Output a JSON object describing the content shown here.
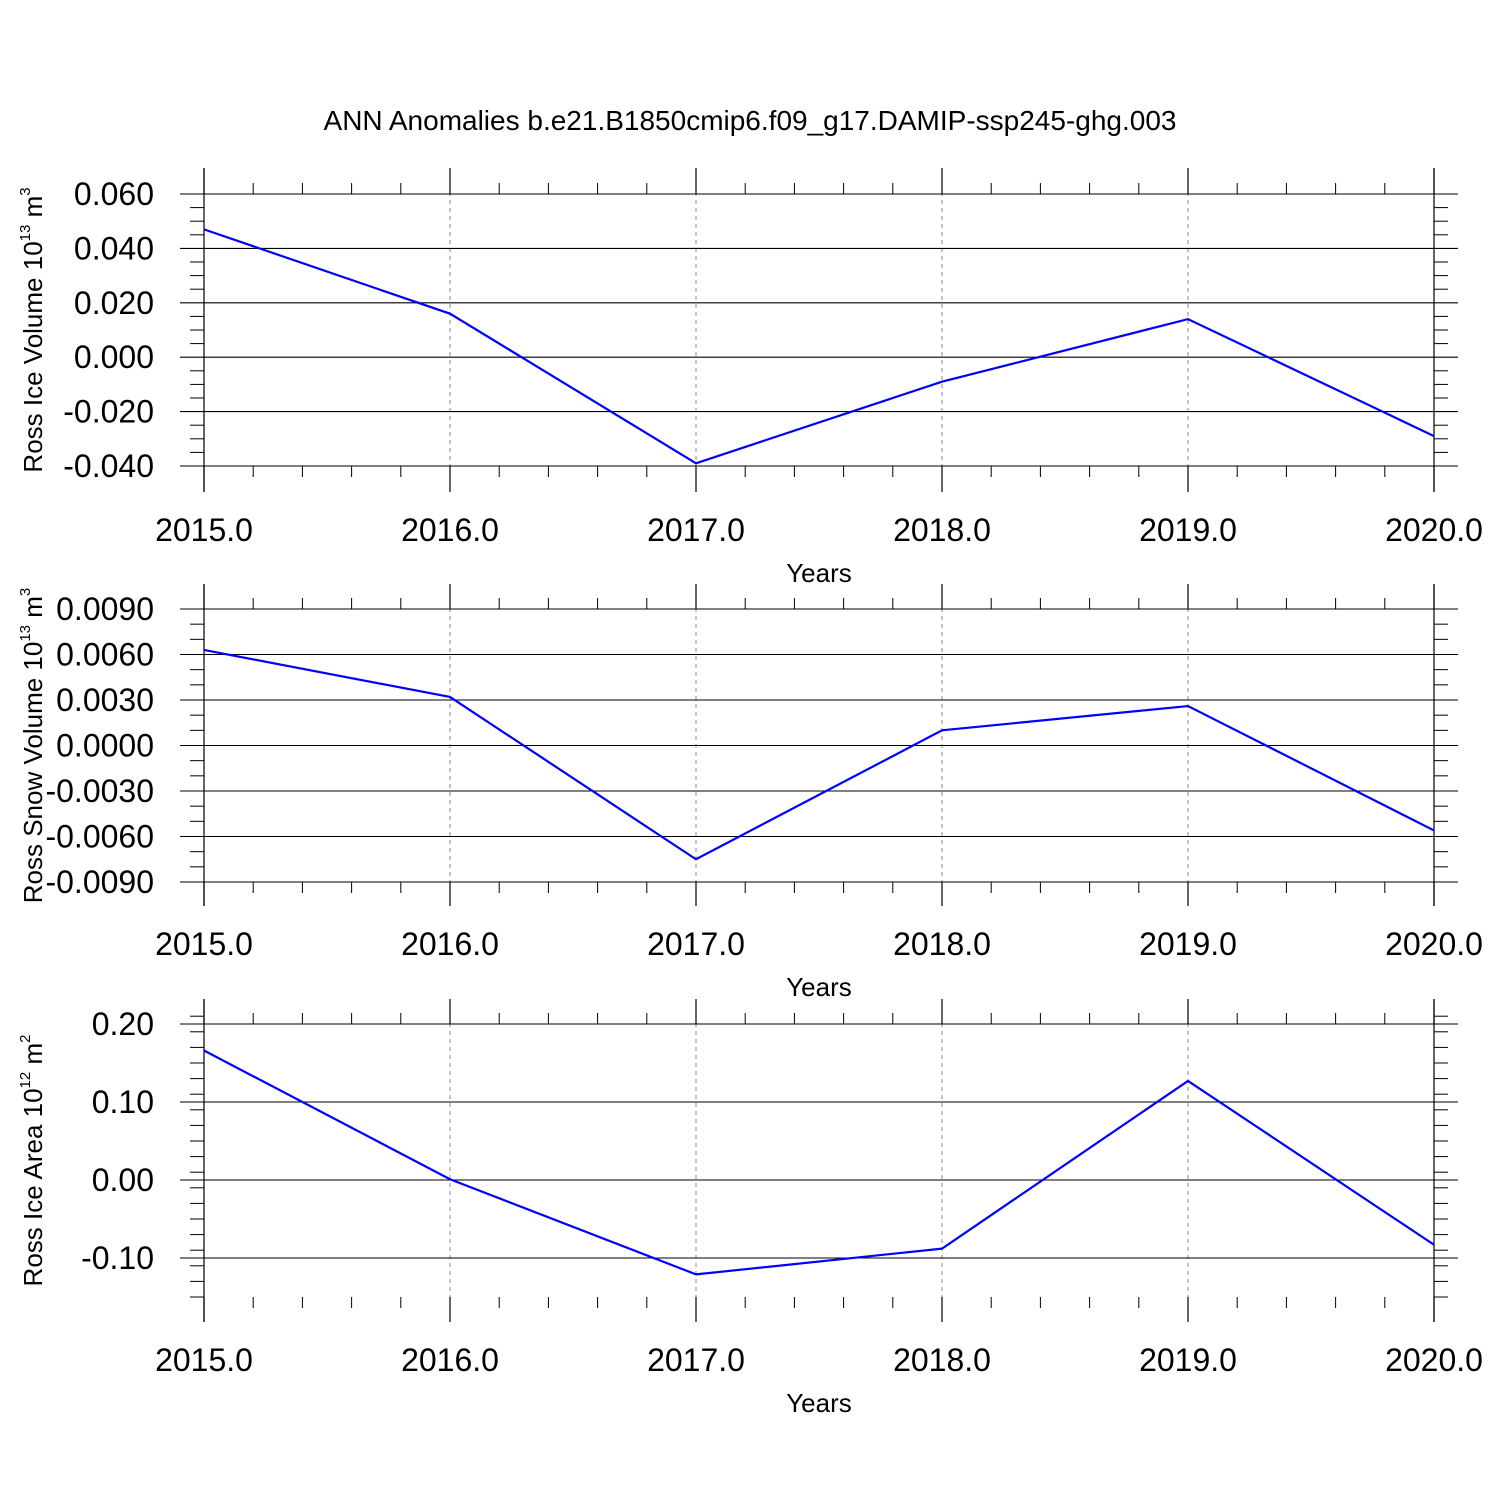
{
  "title": "ANN Anomalies b.e21.B1850cmip6.f09_g17.DAMIP-ssp245-ghg.003",
  "line_color": "#0000ff",
  "chart_data": [
    {
      "type": "line",
      "xlabel": "Years",
      "ylabel": {
        "text": "Ross Ice Volume 10",
        "sup": "13",
        "unit": " m",
        "unit_sup": "3"
      },
      "x": [
        2015.0,
        2016.0,
        2017.0,
        2018.0,
        2019.0,
        2020.0
      ],
      "xticks": [
        "2015.0",
        "2016.0",
        "2017.0",
        "2018.0",
        "2019.0",
        "2020.0"
      ],
      "xlim": [
        2015.0,
        2020.0
      ],
      "ylim": [
        -0.04,
        0.06
      ],
      "yticks": [
        0.06,
        0.04,
        0.02,
        0.0,
        -0.02,
        -0.04
      ],
      "ytick_labels": [
        "0.060",
        "0.040",
        "0.020",
        "0.000",
        "-0.020",
        "-0.040"
      ],
      "y_minor_step": 0.005,
      "series": [
        {
          "values": [
            0.047,
            0.016,
            -0.039,
            -0.009,
            0.014,
            -0.029
          ]
        }
      ]
    },
    {
      "type": "line",
      "xlabel": "Years",
      "ylabel": {
        "text": "Ross Snow Volume 10",
        "sup": "13",
        "unit": " m",
        "unit_sup": "3"
      },
      "x": [
        2015.0,
        2016.0,
        2017.0,
        2018.0,
        2019.0,
        2020.0
      ],
      "xticks": [
        "2015.0",
        "2016.0",
        "2017.0",
        "2018.0",
        "2019.0",
        "2020.0"
      ],
      "xlim": [
        2015.0,
        2020.0
      ],
      "ylim": [
        -0.009,
        0.009
      ],
      "yticks": [
        0.009,
        0.006,
        0.003,
        0.0,
        -0.003,
        -0.006,
        -0.009
      ],
      "ytick_labels": [
        "0.0090",
        "0.0060",
        "0.0030",
        "0.0000",
        "-0.0030",
        "-0.0060",
        "-0.0090"
      ],
      "y_minor_step": 0.001,
      "series": [
        {
          "values": [
            0.0063,
            0.0032,
            -0.0075,
            0.001,
            0.0026,
            -0.0056
          ]
        }
      ]
    },
    {
      "type": "line",
      "xlabel": "Years",
      "ylabel": {
        "text": "Ross Ice Area 10",
        "sup": "12",
        "unit": " m",
        "unit_sup": "2"
      },
      "x": [
        2015.0,
        2016.0,
        2017.0,
        2018.0,
        2019.0,
        2020.0
      ],
      "xticks": [
        "2015.0",
        "2016.0",
        "2017.0",
        "2018.0",
        "2019.0",
        "2020.0"
      ],
      "xlim": [
        2015.0,
        2020.0
      ],
      "ylim": [
        -0.15,
        0.2
      ],
      "yticks": [
        0.2,
        0.1,
        0.0,
        -0.1
      ],
      "ytick_labels": [
        "0.20",
        "0.10",
        "0.00",
        "-0.10"
      ],
      "y_minor_step": 0.02,
      "series": [
        {
          "values": [
            0.166,
            0.001,
            -0.121,
            -0.088,
            0.127,
            -0.083
          ]
        }
      ]
    }
  ]
}
